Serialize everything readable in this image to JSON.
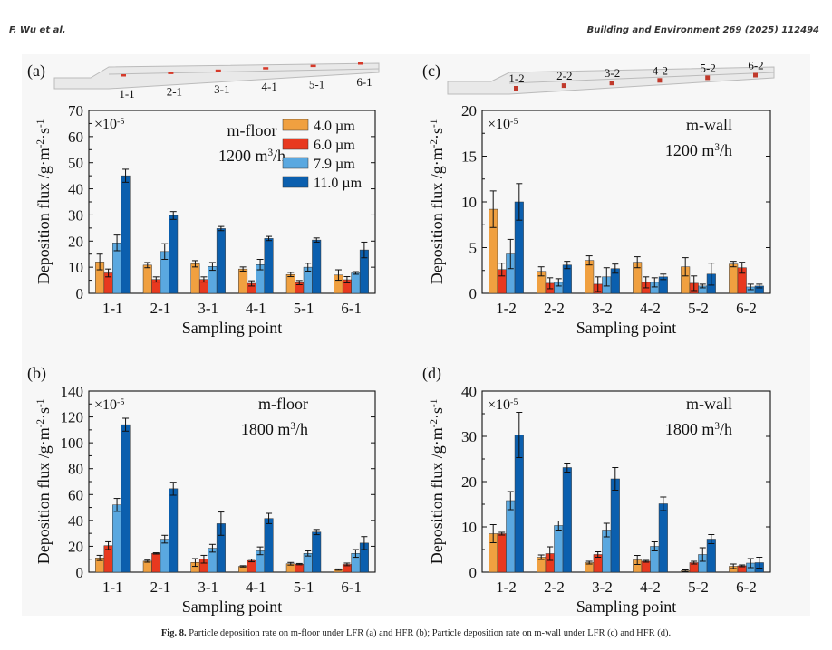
{
  "header": {
    "authors": "F. Wu et al.",
    "journal": "Building and Environment 269 (2025) 112494"
  },
  "caption": {
    "label": "Fig. 8.",
    "text": "Particle deposition rate on m-floor under LFR (a) and HFR (b); Particle deposition rate on m-wall under LFR (c) and HFR (d)."
  },
  "colors": {
    "4.0 µm": "#f0a040",
    "6.0 µm": "#e8391f",
    "7.9 µm": "#5aa8e0",
    "11.0 µm": "#0b5fae"
  },
  "chart_data": [
    {
      "panel": "(a)",
      "type": "bar",
      "location": "m-floor",
      "flow_rate": "1200 m³/h",
      "scale_label": "×10",
      "scale_exp": "-5",
      "xlabel": "Sampling point",
      "ylabel": "Deposition flux /g·m⁻²·s⁻¹",
      "ylim": [
        0,
        70
      ],
      "yticks": [
        0,
        10,
        20,
        30,
        40,
        50,
        60,
        70
      ],
      "categories": [
        "1-1",
        "2-1",
        "3-1",
        "4-1",
        "5-1",
        "6-1"
      ],
      "duct_labels": [
        "1-1",
        "2-1",
        "3-1",
        "4-1",
        "5-1",
        "6-1"
      ],
      "legend": [
        "4.0 µm",
        "6.0 µm",
        "7.9 µm",
        "11.0 µm"
      ],
      "series": [
        {
          "name": "4.0 µm",
          "values": [
            12,
            10.8,
            11.3,
            9.3,
            7.2,
            7.0
          ],
          "errors": [
            3,
            1,
            1.2,
            0.8,
            0.8,
            2
          ]
        },
        {
          "name": "6.0 µm",
          "values": [
            7.8,
            5.3,
            5.3,
            3.8,
            4.1,
            5.2
          ],
          "errors": [
            1.5,
            1,
            1,
            1,
            0.8,
            1.2
          ]
        },
        {
          "name": "7.9 µm",
          "values": [
            19.3,
            16,
            10.3,
            11,
            10,
            7.8
          ],
          "errors": [
            3,
            3,
            1.5,
            2,
            1.5,
            0.5
          ]
        },
        {
          "name": "11.0 µm",
          "values": [
            45,
            29.8,
            24.8,
            21,
            20.4,
            16.6
          ],
          "errors": [
            2.5,
            1.5,
            0.8,
            0.8,
            0.8,
            3
          ]
        }
      ]
    },
    {
      "panel": "(b)",
      "type": "bar",
      "location": "m-floor",
      "flow_rate": "1800 m³/h",
      "scale_label": "×10",
      "scale_exp": "-5",
      "xlabel": "Sampling point",
      "ylabel": "Deposition flux /g·m⁻²·s⁻¹",
      "ylim": [
        0,
        140
      ],
      "yticks": [
        0,
        20,
        40,
        60,
        80,
        100,
        120,
        140
      ],
      "categories": [
        "1-1",
        "2-1",
        "3-1",
        "4-1",
        "5-1",
        "6-1"
      ],
      "series": [
        {
          "name": "4.0 µm",
          "values": [
            11,
            8.5,
            7.5,
            4.5,
            6.5,
            2
          ],
          "errors": [
            2,
            0.8,
            3,
            0.5,
            1,
            0.5
          ]
        },
        {
          "name": "6.0 µm",
          "values": [
            20.5,
            14.5,
            10,
            9,
            6.2,
            6
          ],
          "errors": [
            3,
            0.5,
            3,
            1,
            0.5,
            1
          ]
        },
        {
          "name": "7.9 µm",
          "values": [
            52,
            25.5,
            18.5,
            16.5,
            14.5,
            14.5
          ],
          "errors": [
            5,
            3,
            3,
            3,
            2,
            3
          ]
        },
        {
          "name": "11.0 µm",
          "values": [
            114,
            64.5,
            37.5,
            41.5,
            31,
            22.5
          ],
          "errors": [
            5,
            5,
            9,
            4,
            2,
            5
          ]
        }
      ]
    },
    {
      "panel": "(c)",
      "type": "bar",
      "location": "m-wall",
      "flow_rate": "1200 m³/h",
      "scale_label": "×10",
      "scale_exp": "-5",
      "xlabel": "Sampling point",
      "ylabel": "Deposition flux /g·m⁻²·s⁻¹",
      "ylim": [
        0,
        20
      ],
      "yticks": [
        0,
        5,
        10,
        15,
        20
      ],
      "categories": [
        "1-2",
        "2-2",
        "3-2",
        "4-2",
        "5-2",
        "6-2"
      ],
      "duct_labels": [
        "1-2",
        "2-2",
        "3-2",
        "4-2",
        "5-2",
        "6-2"
      ],
      "series": [
        {
          "name": "4.0 µm",
          "values": [
            9.2,
            2.4,
            3.6,
            3.4,
            2.9,
            3.2
          ],
          "errors": [
            2,
            0.5,
            0.5,
            0.6,
            1,
            0.3
          ]
        },
        {
          "name": "6.0 µm",
          "values": [
            2.6,
            1.1,
            1.0,
            1.2,
            1.1,
            2.8
          ],
          "errors": [
            0.7,
            0.6,
            0.8,
            0.6,
            0.8,
            0.6
          ]
        },
        {
          "name": "7.9 µm",
          "values": [
            4.3,
            1.2,
            1.8,
            1.2,
            0.8,
            0.7
          ],
          "errors": [
            1.6,
            0.4,
            1,
            0.5,
            0.2,
            0.3
          ]
        },
        {
          "name": "11.0 µm",
          "values": [
            10,
            3.1,
            2.7,
            1.8,
            2.1,
            0.8
          ],
          "errors": [
            2,
            0.4,
            0.5,
            0.3,
            1.2,
            0.2
          ]
        }
      ]
    },
    {
      "panel": "(d)",
      "type": "bar",
      "location": "m-wall",
      "flow_rate": "1800 m³/h",
      "scale_label": "×10",
      "scale_exp": "-5",
      "xlabel": "Sampling point",
      "ylabel": "Deposition flux /g·m⁻²·s⁻¹",
      "ylim": [
        0,
        40
      ],
      "yticks": [
        0,
        10,
        20,
        30,
        40
      ],
      "categories": [
        "1-2",
        "2-2",
        "3-2",
        "4-2",
        "5-2",
        "6-2"
      ],
      "series": [
        {
          "name": "4.0 µm",
          "values": [
            8.5,
            3.3,
            2.1,
            2.7,
            0.3,
            1.3
          ],
          "errors": [
            2,
            0.5,
            0.3,
            1,
            0.2,
            0.5
          ]
        },
        {
          "name": "6.0 µm",
          "values": [
            8.5,
            4.1,
            3.9,
            2.4,
            2.1,
            1.4
          ],
          "errors": [
            0.3,
            1.5,
            0.6,
            0.2,
            0.3,
            0.2
          ]
        },
        {
          "name": "7.9 µm",
          "values": [
            15.8,
            10.3,
            9.3,
            5.7,
            3.9,
            2.0
          ],
          "errors": [
            2,
            1,
            1.5,
            1,
            1.5,
            1
          ]
        },
        {
          "name": "11.0 µm",
          "values": [
            30.3,
            23.1,
            20.6,
            15.1,
            7.3,
            2.1
          ],
          "errors": [
            5,
            1,
            2.5,
            1.5,
            1,
            1.2
          ]
        }
      ]
    }
  ]
}
